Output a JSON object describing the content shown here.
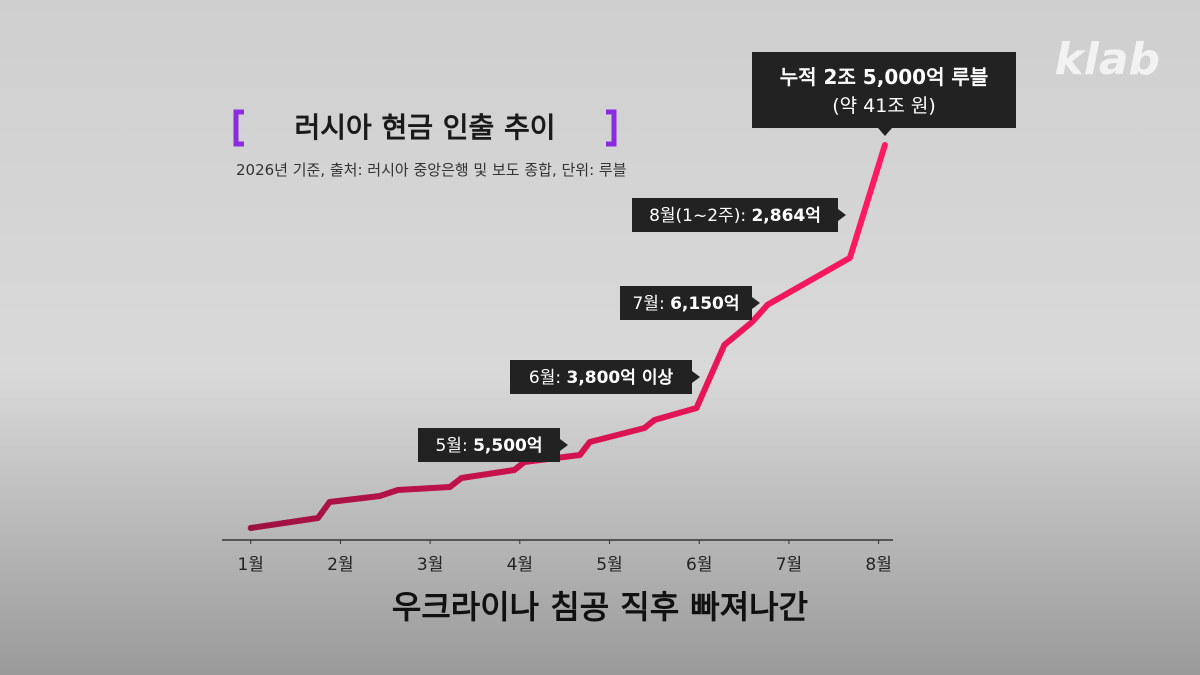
{
  "chart_data": {
    "type": "line",
    "title": "러시아 현금 인출 추이",
    "subtitle": "2026년 기준, 출처: 러시아 중앙은행 및 보도 종합, 단위: 루블",
    "caption": "우크라이나 침공 직후 빠져나간",
    "logo": "klab",
    "xlim": [
      0.68,
      8.16
    ],
    "xticks": [
      {
        "value": 1,
        "label": "1월"
      },
      {
        "value": 2,
        "label": "2월"
      },
      {
        "value": 3,
        "label": "3월"
      },
      {
        "value": 4,
        "label": "4월"
      },
      {
        "value": 5,
        "label": "5월"
      },
      {
        "value": 6,
        "label": "6월"
      },
      {
        "value": 7,
        "label": "7월"
      },
      {
        "value": 8,
        "label": "8월"
      }
    ],
    "ylim": [
      0,
      25000
    ],
    "series": [
      {
        "color": "#f0145a",
        "x": [
          1,
          1.75,
          1.88,
          2.44,
          2.64,
          3.22,
          3.35,
          3.94,
          4.05,
          4.67,
          4.78,
          5.39,
          5.5,
          5.97,
          6.28,
          6.59,
          6.76,
          7.68,
          8.07
        ],
        "values": [
          0,
          653,
          1698,
          2090,
          2481,
          2677,
          3265,
          3787,
          4310,
          4767,
          5616,
          6530,
          7052,
          7836,
          11950,
          13452,
          14562,
          17631,
          25000
        ]
      }
    ],
    "annotations": [
      {
        "label": "5월:",
        "value": "5,500억"
      },
      {
        "label": "6월:",
        "value": "3,800억 이상"
      },
      {
        "label": "7월:",
        "value": "6,150억"
      },
      {
        "label": "8월(1~2주):",
        "value": "2,864억"
      },
      {
        "label": "누적 2조 5,000억 루블",
        "value": "(약 41조 원)"
      }
    ]
  }
}
